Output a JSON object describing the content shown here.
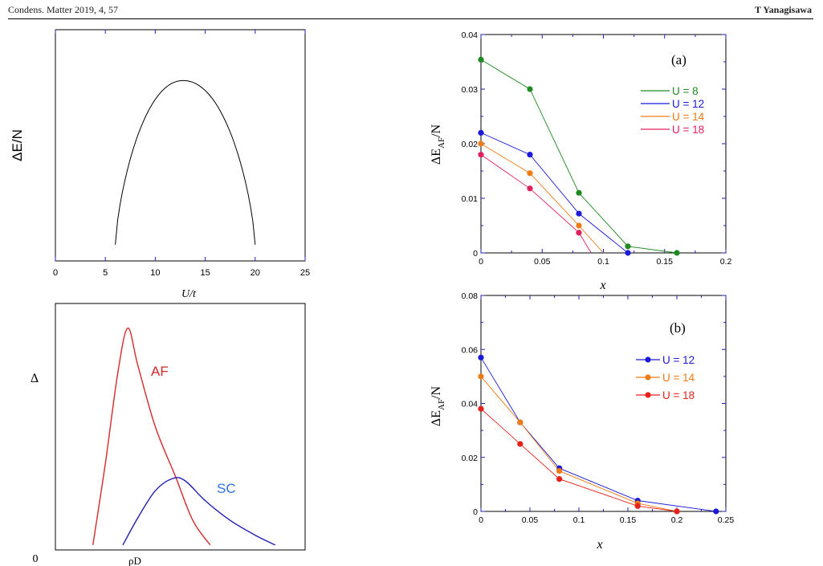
{
  "header": {
    "citation": "Condens. Matter 2019, 4, 57",
    "author": "T Yanagisawa"
  },
  "chart_data": [
    {
      "id": "energy-vs-U",
      "type": "line",
      "ylabel": "ΔE/N",
      "xlabel": "U/t",
      "xlim": [
        0,
        25
      ],
      "xticks": [
        "0",
        "5",
        "10",
        "15",
        "20",
        "25"
      ],
      "curve": {
        "x0": 6,
        "x1": 20,
        "peak_x": 12.8,
        "peak": 0.78,
        "base": 0.07
      }
    },
    {
      "id": "delta-vs-rho",
      "type": "line",
      "ylabel": "Δ",
      "xlabel": "ρD",
      "origin_label": "0",
      "series": [
        {
          "name": "AF",
          "color": "#d42a2a",
          "points": [
            [
              0.15,
              0.02
            ],
            [
              0.2,
              0.35
            ],
            [
              0.25,
              0.72
            ],
            [
              0.29,
              0.9
            ],
            [
              0.33,
              0.75
            ],
            [
              0.4,
              0.5
            ],
            [
              0.48,
              0.3
            ],
            [
              0.55,
              0.12
            ],
            [
              0.62,
              0.02
            ]
          ]
        },
        {
          "name": "SC",
          "color": "#1e1eb4",
          "points": [
            [
              0.27,
              0.02
            ],
            [
              0.33,
              0.13
            ],
            [
              0.4,
              0.24
            ],
            [
              0.47,
              0.29
            ],
            [
              0.52,
              0.28
            ],
            [
              0.6,
              0.2
            ],
            [
              0.7,
              0.12
            ],
            [
              0.8,
              0.06
            ],
            [
              0.88,
              0.02
            ]
          ]
        }
      ],
      "labels": {
        "af": "AF",
        "sc": "SC"
      }
    },
    {
      "id": "panel-a",
      "type": "line",
      "panel": "(a)",
      "ylabel": "ΔE",
      "ylabel_sub": "AF",
      "ylabel_tail": "/N",
      "xlabel": "x",
      "xlim": [
        0,
        0.2
      ],
      "ylim": [
        0,
        0.04
      ],
      "xticks": [
        0,
        0.05,
        0.1,
        0.15,
        0.2
      ],
      "xtick_labels": [
        "0",
        "0.05",
        "0.1",
        "0.15",
        "0.2"
      ],
      "yticks": [
        0,
        0.01,
        0.02,
        0.03,
        0.04
      ],
      "ytick_labels": [
        "0",
        "0.01",
        "0.02",
        "0.03",
        "0.04"
      ],
      "series": [
        {
          "name": "U = 8",
          "color": "#1f8a1f",
          "x": [
            0,
            0.04,
            0.08,
            0.12,
            0.16
          ],
          "y": [
            0.0354,
            0.03,
            0.011,
            0.0012,
            0
          ],
          "tail": [
            0.16,
            0
          ]
        },
        {
          "name": "U = 12",
          "color": "#1a1ad8",
          "x": [
            0,
            0.04,
            0.08,
            0.12
          ],
          "y": [
            0.022,
            0.018,
            0.0072,
            0
          ],
          "tail": [
            0.12,
            0
          ]
        },
        {
          "name": "U = 14",
          "color": "#f07a14",
          "x": [
            0,
            0.04,
            0.08
          ],
          "y": [
            0.02,
            0.0146,
            0.005
          ],
          "tail": [
            0.1,
            0
          ]
        },
        {
          "name": "U = 18",
          "color": "#e0205c",
          "x": [
            0,
            0.04,
            0.08
          ],
          "y": [
            0.018,
            0.0118,
            0.0037
          ],
          "tail": [
            0.09,
            0
          ]
        }
      ]
    },
    {
      "id": "panel-b",
      "type": "line",
      "panel": "(b)",
      "ylabel": "ΔE",
      "ylabel_sub": "AF",
      "ylabel_tail": "/N",
      "xlabel": "x",
      "xlim": [
        0,
        0.25
      ],
      "ylim": [
        0,
        0.08
      ],
      "xticks": [
        0,
        0.05,
        0.1,
        0.15,
        0.2,
        0.25
      ],
      "xtick_labels": [
        "0",
        "0.05",
        "0.1",
        "0.15",
        "0.2",
        "0.25"
      ],
      "yticks": [
        0,
        0.02,
        0.04,
        0.06,
        0.08
      ],
      "ytick_labels": [
        "0",
        "0.02",
        "0.04",
        "0.06",
        "0.08"
      ],
      "series": [
        {
          "name": "U = 12",
          "color": "#1a1ad8",
          "x": [
            0,
            0.04,
            0.08,
            0.16,
            0.24
          ],
          "y": [
            0.057,
            0.033,
            0.016,
            0.004,
            0
          ]
        },
        {
          "name": "U = 14",
          "color": "#f07a14",
          "x": [
            0,
            0.04,
            0.08,
            0.16,
            0.2
          ],
          "y": [
            0.05,
            0.033,
            0.015,
            0.003,
            0
          ]
        },
        {
          "name": "U = 18",
          "color": "#e8201a",
          "x": [
            0,
            0.04,
            0.08,
            0.16,
            0.2
          ],
          "y": [
            0.038,
            0.025,
            0.012,
            0.002,
            0
          ]
        }
      ]
    }
  ]
}
